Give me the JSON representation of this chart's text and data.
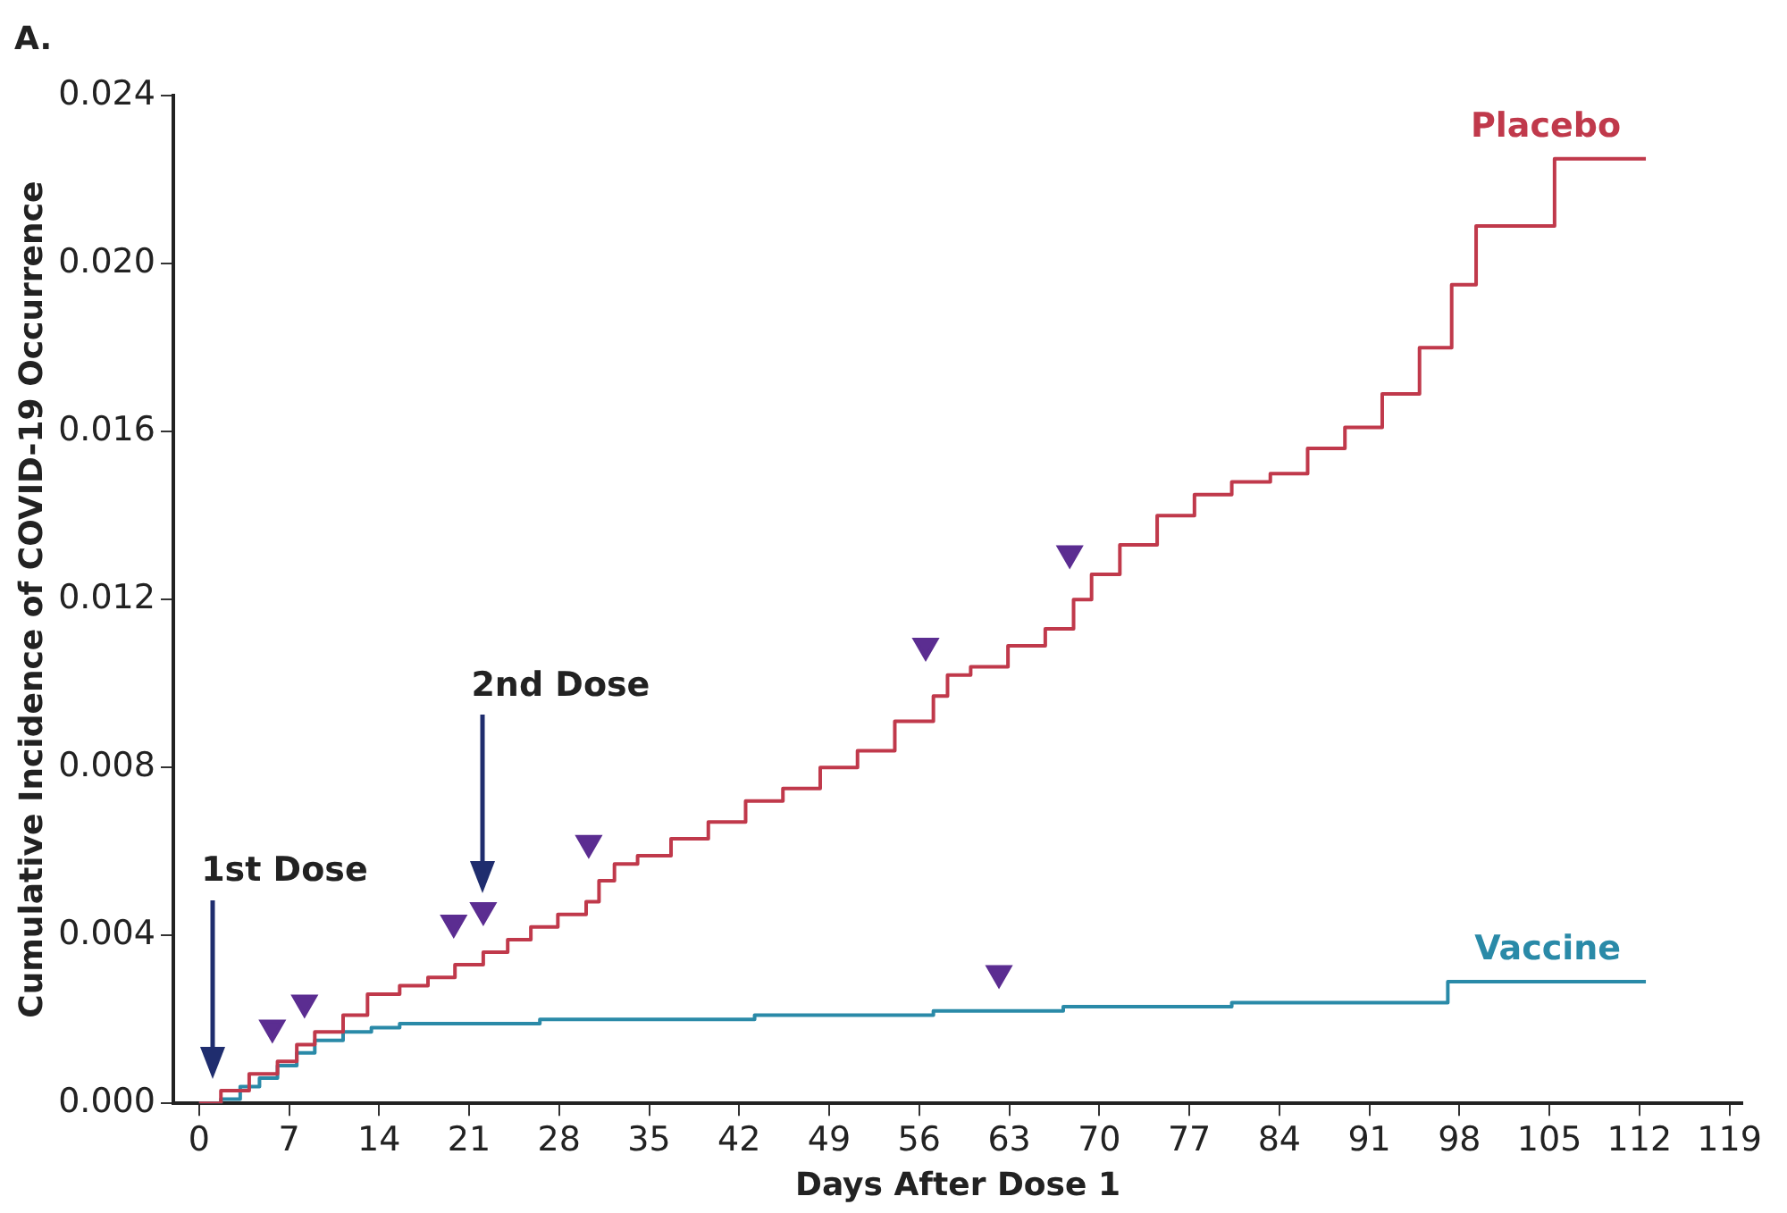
{
  "chart_data": {
    "type": "step",
    "title": "A.",
    "xlabel": "Days After Dose 1",
    "ylabel": "Cumulative Incidence of COVID-19 Occurrence",
    "xlim": [
      -2,
      120
    ],
    "xticks": [
      0,
      7,
      14,
      21,
      28,
      35,
      42,
      49,
      56,
      63,
      70,
      77,
      84,
      91,
      98,
      105,
      112,
      119
    ],
    "ylim": [
      0,
      0.024
    ],
    "yticks": [
      {
        "value": 0,
        "label": "0.000"
      },
      {
        "value": 0.004,
        "label": "0.004"
      },
      {
        "value": 0.008,
        "label": "0.008"
      },
      {
        "value": 0.012,
        "label": "0.012"
      },
      {
        "value": 0.016,
        "label": "0.016"
      },
      {
        "value": 0.02,
        "label": "0.020"
      },
      {
        "value": 0.024,
        "label": "0.024"
      }
    ],
    "grid": false,
    "legend": false,
    "marker": "none",
    "line_style": "solid",
    "ref_lines": [
      {
        "axis": "x",
        "value": 1,
        "label": "1st Dose",
        "color": "#1f2d6e"
      },
      {
        "axis": "x",
        "value": 22,
        "label": "2nd Dose",
        "color": "#1f2d6e"
      }
    ],
    "series": [
      {
        "name": "Placebo",
        "color": "#c0394b",
        "x": [
          0,
          1.7,
          3.9,
          6.1,
          7.6,
          9.0,
          11.2,
          13.1,
          15.6,
          17.8,
          19.9,
          22.1,
          24.0,
          25.8,
          27.9,
          30.1,
          31.1,
          32.3,
          34.1,
          36.7,
          39.6,
          42.5,
          45.4,
          48.3,
          51.2,
          54.1,
          57.1,
          58.2,
          60.0,
          62.9,
          65.8,
          68.0,
          69.4,
          71.6,
          74.5,
          77.4,
          80.3,
          83.3,
          86.2,
          89.1,
          92.0,
          94.9,
          97.4,
          99.3,
          105.4,
          112.5
        ],
        "values": [
          0,
          0.0003,
          0.0007,
          0.001,
          0.0014,
          0.0017,
          0.0021,
          0.0026,
          0.0028,
          0.003,
          0.0033,
          0.0036,
          0.0039,
          0.0042,
          0.0045,
          0.0048,
          0.0053,
          0.0057,
          0.0059,
          0.0063,
          0.0067,
          0.0072,
          0.0075,
          0.008,
          0.0084,
          0.0091,
          0.0097,
          0.0102,
          0.0104,
          0.0109,
          0.0113,
          0.012,
          0.0126,
          0.0133,
          0.014,
          0.0145,
          0.0148,
          0.015,
          0.0156,
          0.0161,
          0.0169,
          0.018,
          0.0195,
          0.0209,
          0.0225,
          0.0225
        ]
      },
      {
        "name": "Vaccine",
        "color": "#2a8aa8",
        "x": [
          0,
          1.7,
          3.2,
          4.7,
          6.1,
          7.6,
          9.0,
          11.2,
          13.4,
          15.6,
          26.5,
          43.2,
          57.1,
          67.2,
          80.3,
          97.1,
          112.5
        ],
        "values": [
          0,
          0.0001,
          0.0004,
          0.0006,
          0.0009,
          0.0012,
          0.0015,
          0.0017,
          0.0018,
          0.0019,
          0.002,
          0.0021,
          0.0022,
          0.0023,
          0.0024,
          0.0029,
          0.0029
        ]
      },
      {
        "type": "scatter",
        "marker": "triangle",
        "color": "#5b2d91",
        "x": [
          5.7,
          8.2,
          19.8,
          22.1,
          30.3,
          56.5,
          62.2,
          67.7
        ],
        "values": [
          0.0018,
          0.0024,
          0.0043,
          0.0046,
          0.0062,
          0.0109,
          0.0031,
          0.0131
        ]
      }
    ]
  }
}
